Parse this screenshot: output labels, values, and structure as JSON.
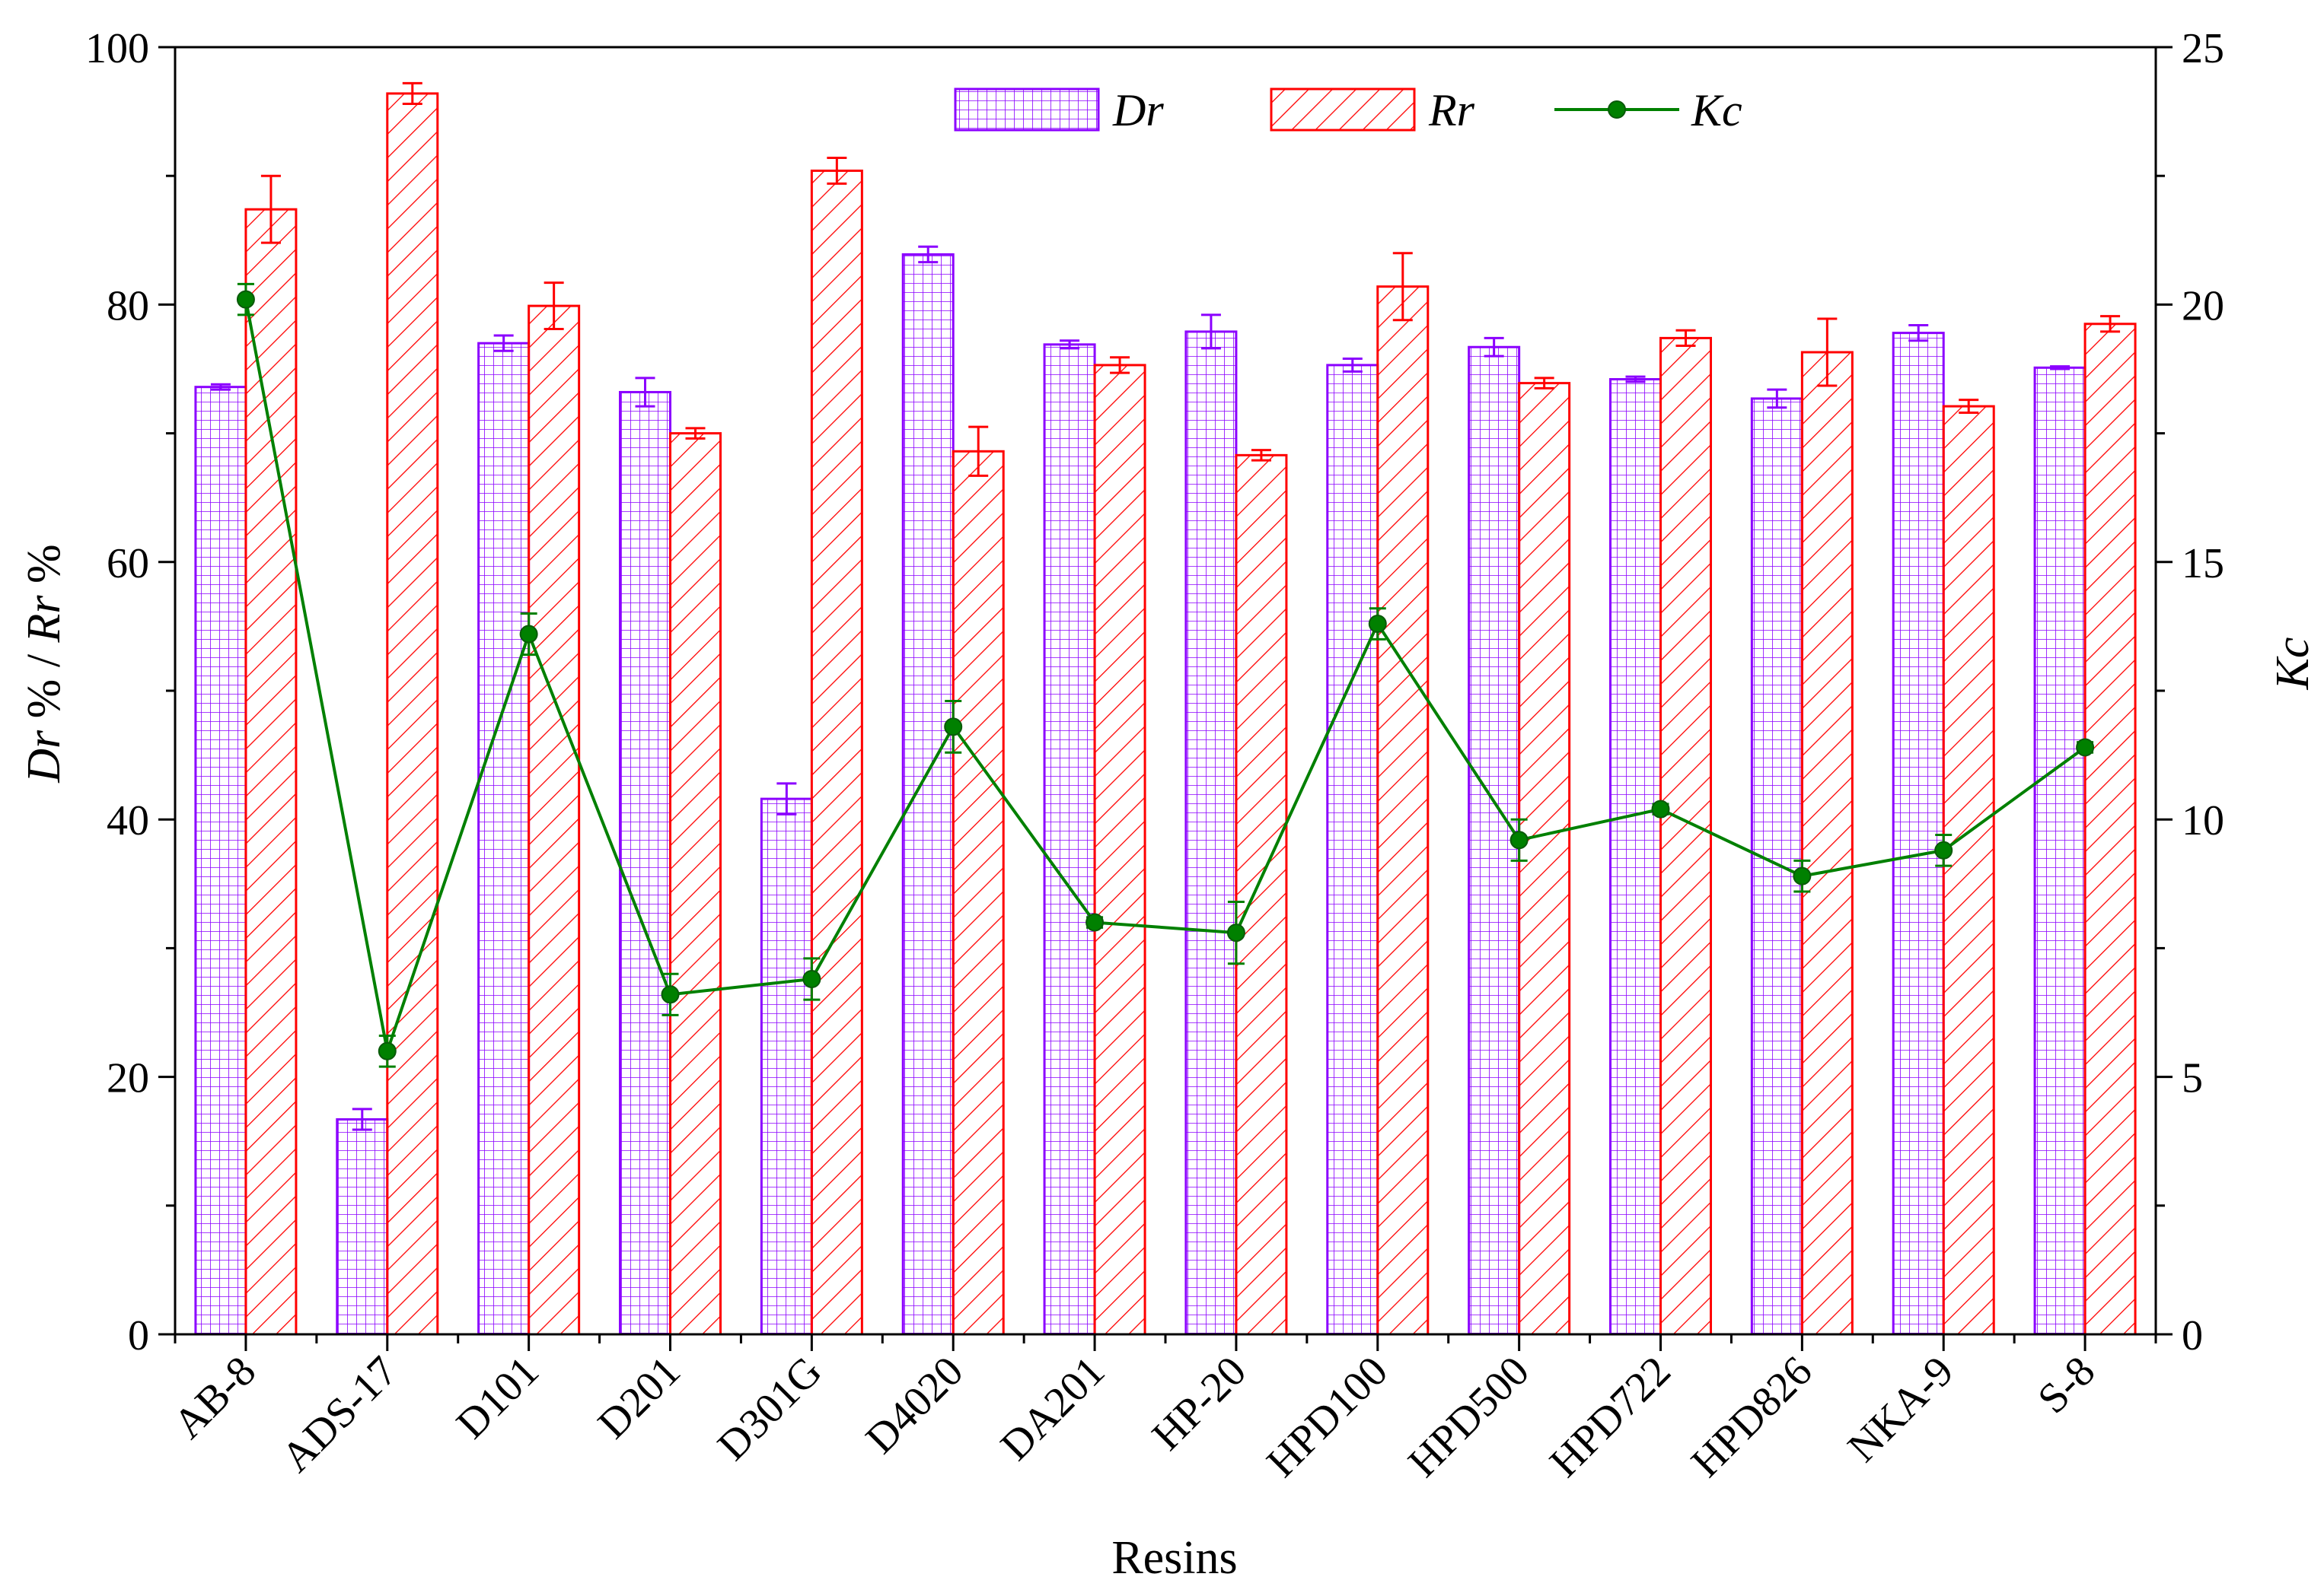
{
  "chart_data": {
    "type": "bar",
    "xlabel": "Resins",
    "ylabel": {
      "left": "Dr % / Rr %",
      "right": "Kc"
    },
    "ylabel_parts": {
      "left": [
        "Dr",
        " % / ",
        "Rr",
        " %"
      ],
      "right": "Kc"
    },
    "ylim_left": [
      0,
      100
    ],
    "ylim_right": [
      0,
      25
    ],
    "yticks_left": [
      "0",
      "20",
      "40",
      "60",
      "80",
      "100"
    ],
    "yticks_right": [
      "0",
      "5",
      "10",
      "15",
      "20",
      "25"
    ],
    "categories": [
      "AB-8",
      "ADS-17",
      "D101",
      "D201",
      "D301G",
      "D4020",
      "DA201",
      "HP-20",
      "HPD100",
      "HPD500",
      "HPD722",
      "HPD826",
      "NKA-9",
      "S-8"
    ],
    "series": [
      {
        "name": "Dr",
        "kind": "bar",
        "axis": "left",
        "color": "#8b00ff",
        "pattern": "grid",
        "values": [
          73.6,
          16.7,
          77.0,
          73.2,
          41.6,
          83.9,
          76.9,
          77.9,
          75.3,
          76.7,
          74.2,
          72.7,
          77.8,
          75.1
        ],
        "errors": [
          0.2,
          0.8,
          0.6,
          1.1,
          1.2,
          0.6,
          0.3,
          1.3,
          0.5,
          0.7,
          0.2,
          0.7,
          0.6,
          0.1
        ]
      },
      {
        "name": "Rr",
        "kind": "bar",
        "axis": "left",
        "color": "#ff0000",
        "pattern": "diagonal",
        "values": [
          87.4,
          96.4,
          79.9,
          70.0,
          90.4,
          68.6,
          75.3,
          68.3,
          81.4,
          73.9,
          77.4,
          76.3,
          72.1,
          78.5
        ],
        "errors": [
          2.6,
          0.8,
          1.8,
          0.4,
          1.0,
          1.9,
          0.6,
          0.4,
          2.6,
          0.4,
          0.6,
          2.6,
          0.5,
          0.6
        ]
      },
      {
        "name": "Kc",
        "kind": "line",
        "axis": "right",
        "color": "#008000",
        "values": [
          20.1,
          5.5,
          13.6,
          6.6,
          6.9,
          11.8,
          8.0,
          7.8,
          13.8,
          9.6,
          10.2,
          8.9,
          9.4,
          11.4
        ],
        "errors": [
          0.3,
          0.3,
          0.4,
          0.4,
          0.4,
          0.5,
          0.1,
          0.6,
          0.3,
          0.4,
          0.1,
          0.3,
          0.3,
          0.1
        ]
      }
    ],
    "legend": {
      "position": "top-center",
      "entries": [
        "Dr",
        "Rr",
        "Kc"
      ]
    },
    "grid": false
  }
}
